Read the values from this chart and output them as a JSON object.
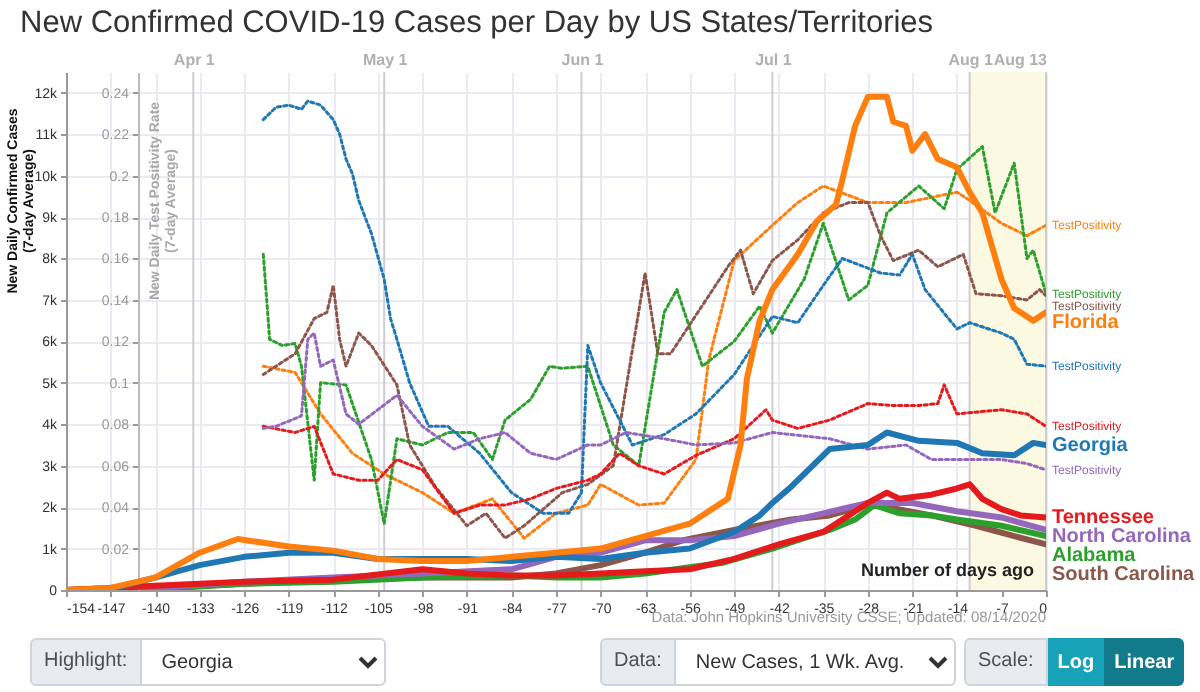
{
  "chart_data": {
    "type": "line",
    "title": "New Confirmed COVID-19 Cases per Day by US States/Territories",
    "xlabel": "Number of days ago",
    "ylabel": "New Daily Confirmed Cases\n(7-day Average)",
    "y2label": "New Daily Test Positivity Rate\n(7-day Average)",
    "annotations": [
      "Data: John Hopkins University CSSE; Updated: 08/14/2020",
      "Highlight:",
      "Georgia",
      "Data:",
      "New Cases, 1 Wk. Avg.",
      "Scale:",
      "Log",
      "Linear"
    ],
    "xlim": [
      -154,
      0
    ],
    "xticks": [
      -154,
      -147,
      -140,
      -133,
      -126,
      -119,
      -112,
      -105,
      -98,
      -91,
      -84,
      -77,
      -70,
      -63,
      -56,
      -49,
      -42,
      -35,
      -28,
      -21,
      -14,
      -7,
      0
    ],
    "x2lim": [
      "--03-12",
      "--08-13"
    ],
    "x2ticks": [
      {
        "value": "--04-01",
        "label": "Apr 1"
      },
      {
        "value": "--05-01",
        "label": "May 1"
      },
      {
        "value": "--06-01",
        "label": "Jun 1"
      },
      {
        "value": "--07-01",
        "label": "Jul 1"
      },
      {
        "value": "--08-01",
        "label": "Aug 1"
      },
      {
        "value": "--08-13",
        "label": "Aug 13"
      }
    ],
    "ylim": [
      0,
      12500
    ],
    "yticks": [
      0,
      {
        "value": 1000,
        "label": "1k"
      },
      {
        "value": 2000,
        "label": "2k"
      },
      {
        "value": 3000,
        "label": "3k"
      },
      {
        "value": 4000,
        "label": "4k"
      },
      {
        "value": 5000,
        "label": "5k"
      },
      {
        "value": 6000,
        "label": "6k"
      },
      {
        "value": 7000,
        "label": "7k"
      },
      {
        "value": 8000,
        "label": "8k"
      },
      {
        "value": 9000,
        "label": "9k"
      },
      {
        "value": 10000,
        "label": "10k"
      },
      {
        "value": 11000,
        "label": "11k"
      },
      {
        "value": 12000,
        "label": "12k"
      }
    ],
    "y2lim": [
      0,
      0.25
    ],
    "y2ticks": [
      0.02,
      0.04,
      0.06,
      0.08,
      0.1,
      0.12,
      0.14,
      0.16,
      0.18,
      0.2,
      0.22,
      0.24
    ],
    "grid": true,
    "bands": [
      {
        "axis": "x",
        "from": -12,
        "to": 0,
        "color": "#fcf9e3"
      }
    ],
    "series": [
      {
        "name": "TestPositivity",
        "color": "#ff7f0e",
        "axis": "y2",
        "line_style": "dotted",
        "x": [
          -123,
          -118,
          -114,
          -109,
          -104,
          -98,
          -93,
          -87,
          -82,
          -77,
          -72,
          -70,
          -67,
          -64,
          -60,
          -55,
          -53,
          -49,
          -43,
          -39,
          -35,
          -28,
          -22,
          -14,
          -12,
          -7,
          -3,
          0
        ],
        "values": [
          0.108,
          0.105,
          0.085,
          0.066,
          0.056,
          0.047,
          0.037,
          0.044,
          0.025,
          0.037,
          0.041,
          0.051,
          0.046,
          0.041,
          0.042,
          0.063,
          0.111,
          0.159,
          0.176,
          0.187,
          0.195,
          0.187,
          0.187,
          0.192,
          0.188,
          0.177,
          0.171,
          0.176
        ]
      },
      {
        "name": "TestPositivity",
        "color": "#2ca02c",
        "axis": "y2",
        "line_style": "dotted",
        "x": [
          -123,
          -122,
          -120,
          -118,
          -117,
          -115,
          -114,
          -110,
          -106,
          -104,
          -102,
          -98,
          -94,
          -90,
          -87,
          -85,
          -81,
          -78,
          -76,
          -72,
          -68,
          -64,
          -60,
          -58,
          -54,
          -49,
          -45,
          -43,
          -38,
          -35,
          -31,
          -28,
          -25,
          -20,
          -16,
          -14,
          -10,
          -8,
          -5,
          -3,
          -2,
          0
        ],
        "values": [
          0.162,
          0.121,
          0.118,
          0.119,
          0.108,
          0.053,
          0.1,
          0.099,
          0.063,
          0.032,
          0.073,
          0.07,
          0.076,
          0.076,
          0.063,
          0.082,
          0.092,
          0.108,
          0.107,
          0.108,
          0.07,
          0.06,
          0.134,
          0.145,
          0.108,
          0.12,
          0.137,
          0.124,
          0.15,
          0.177,
          0.14,
          0.147,
          0.182,
          0.195,
          0.184,
          0.203,
          0.214,
          0.182,
          0.206,
          0.16,
          0.164,
          0.143
        ]
      },
      {
        "name": "TestPositivity",
        "color": "#8c564b",
        "axis": "y2",
        "line_style": "dotted",
        "x": [
          -123,
          -118,
          -115,
          -113,
          -112,
          -111,
          -110,
          -108,
          -106,
          -102,
          -100,
          -96,
          -91,
          -88,
          -85,
          -82,
          -76,
          -72,
          -68,
          -63,
          -61,
          -59,
          -50,
          -48,
          -46,
          -43,
          -39,
          -35,
          -31,
          -28,
          -26,
          -24,
          -20,
          -17,
          -13,
          -11,
          -7,
          -3,
          -1,
          0
        ],
        "values": [
          0.104,
          0.114,
          0.131,
          0.134,
          0.147,
          0.121,
          0.108,
          0.124,
          0.118,
          0.099,
          0.07,
          0.05,
          0.031,
          0.037,
          0.025,
          0.031,
          0.047,
          0.051,
          0.06,
          0.153,
          0.114,
          0.114,
          0.156,
          0.164,
          0.143,
          0.159,
          0.169,
          0.182,
          0.187,
          0.187,
          0.171,
          0.159,
          0.164,
          0.156,
          0.162,
          0.143,
          0.142,
          0.14,
          0.145,
          0.142
        ]
      },
      {
        "name": "TestPositivity",
        "color": "#1f77b4",
        "axis": "y2",
        "line_style": "dotted",
        "x": [
          -123,
          -121,
          -119,
          -117,
          -116,
          -114,
          -112,
          -111,
          -110,
          -109,
          -108,
          -106,
          -104,
          -103,
          -102,
          -100,
          -97,
          -94,
          -89,
          -84,
          -79,
          -75,
          -73,
          -72,
          -70,
          -65,
          -60,
          -55,
          -49,
          -43,
          -39,
          -35,
          -32,
          -26,
          -23,
          -21,
          -19,
          -14,
          -12,
          -7,
          -5,
          -3,
          0
        ],
        "values": [
          0.227,
          0.233,
          0.234,
          0.232,
          0.236,
          0.234,
          0.227,
          0.22,
          0.208,
          0.201,
          0.188,
          0.172,
          0.15,
          0.131,
          0.121,
          0.1,
          0.079,
          0.079,
          0.066,
          0.047,
          0.037,
          0.037,
          0.047,
          0.118,
          0.1,
          0.07,
          0.075,
          0.085,
          0.104,
          0.132,
          0.129,
          0.147,
          0.16,
          0.153,
          0.152,
          0.162,
          0.145,
          0.126,
          0.129,
          0.124,
          0.121,
          0.109,
          0.108
        ]
      },
      {
        "name": "TestPositivity",
        "color": "#e41a1c",
        "axis": "y2",
        "line_style": "dotted",
        "x": [
          -123,
          -118,
          -115,
          -112,
          -108,
          -105,
          -102,
          -98,
          -93,
          -89,
          -85,
          -81,
          -77,
          -72,
          -70,
          -67,
          -64,
          -60,
          -55,
          -49,
          -44,
          -43,
          -39,
          -34,
          -28,
          -24,
          -20,
          -17,
          -16,
          -14,
          -7,
          -3,
          0
        ],
        "values": [
          0.079,
          0.076,
          0.079,
          0.056,
          0.053,
          0.053,
          0.063,
          0.058,
          0.037,
          0.041,
          0.041,
          0.044,
          0.049,
          0.053,
          0.056,
          0.066,
          0.06,
          0.056,
          0.065,
          0.073,
          0.087,
          0.082,
          0.078,
          0.082,
          0.09,
          0.089,
          0.089,
          0.09,
          0.099,
          0.085,
          0.087,
          0.085,
          0.079
        ]
      },
      {
        "name": "TestPositivity",
        "color": "#9467bd",
        "axis": "y2",
        "line_style": "dotted",
        "x": [
          -123,
          -121,
          -117,
          -116,
          -115,
          -114,
          -112,
          -110,
          -108,
          -102,
          -98,
          -93,
          -89,
          -85,
          -81,
          -77,
          -72,
          -70,
          -66,
          -60,
          -55,
          -49,
          -43,
          -34,
          -28,
          -22,
          -18,
          -14,
          -7,
          -3,
          0
        ],
        "values": [
          0.078,
          0.079,
          0.084,
          0.121,
          0.124,
          0.108,
          0.111,
          0.085,
          0.08,
          0.094,
          0.079,
          0.068,
          0.073,
          0.076,
          0.066,
          0.063,
          0.07,
          0.07,
          0.076,
          0.073,
          0.07,
          0.071,
          0.076,
          0.073,
          0.068,
          0.07,
          0.063,
          0.063,
          0.063,
          0.061,
          0.058
        ]
      },
      {
        "name": "South Carolina",
        "color": "#8c564b",
        "line_style": "solid",
        "x": [
          -154,
          -140,
          -126,
          -112,
          -98,
          -84,
          -77,
          -70,
          -63,
          -57,
          -49,
          -40,
          -34,
          -28,
          -25,
          -18,
          -11,
          -5,
          0
        ],
        "values": [
          0,
          50,
          150,
          250,
          300,
          300,
          400,
          600,
          900,
          1200,
          1450,
          1700,
          1800,
          2050,
          2000,
          1800,
          1550,
          1300,
          1100
        ]
      },
      {
        "name": "Alabama",
        "color": "#2ca02c",
        "line_style": "solid",
        "x": [
          -154,
          -140,
          -126,
          -112,
          -98,
          -84,
          -77,
          -70,
          -63,
          -56,
          -51,
          -43,
          -39,
          -34,
          -30,
          -27,
          -23,
          -18,
          -14,
          -7,
          0
        ],
        "values": [
          0,
          20,
          150,
          200,
          300,
          350,
          300,
          300,
          400,
          550,
          650,
          1000,
          1200,
          1450,
          1700,
          2050,
          1850,
          1800,
          1700,
          1550,
          1300
        ]
      },
      {
        "name": "North Carolina",
        "color": "#9467bd",
        "line_style": "solid",
        "x": [
          -154,
          -140,
          -126,
          -112,
          -98,
          -84,
          -77,
          -70,
          -63,
          -56,
          -49,
          -42,
          -35,
          -28,
          -21,
          -14,
          -7,
          0
        ],
        "values": [
          0,
          50,
          200,
          300,
          400,
          500,
          800,
          900,
          1200,
          1200,
          1300,
          1600,
          1850,
          2100,
          2100,
          1900,
          1750,
          1450
        ]
      },
      {
        "name": "Tennessee",
        "color": "#e41a1c",
        "line_style": "solid",
        "x": [
          -154,
          -140,
          -126,
          -112,
          -98,
          -91,
          -84,
          -77,
          -70,
          -63,
          -56,
          -49,
          -42,
          -35,
          -28,
          -25,
          -23,
          -18,
          -14,
          -12,
          -10,
          -7,
          -4,
          0
        ],
        "values": [
          0,
          100,
          200,
          250,
          500,
          400,
          350,
          350,
          400,
          450,
          500,
          750,
          1100,
          1400,
          2100,
          2350,
          2200,
          2300,
          2450,
          2550,
          2200,
          1950,
          1800,
          1750
        ]
      },
      {
        "name": "Georgia",
        "color": "#1f77b4",
        "line_style": "solid",
        "x": [
          -154,
          -147,
          -140,
          -133,
          -126,
          -119,
          -112,
          -105,
          -98,
          -91,
          -84,
          -77,
          -70,
          -63,
          -56,
          -49,
          -45,
          -43,
          -40,
          -34,
          -28,
          -25,
          -20,
          -14,
          -10,
          -5,
          -2,
          0
        ],
        "values": [
          0,
          20,
          300,
          600,
          800,
          900,
          900,
          750,
          750,
          750,
          700,
          800,
          750,
          900,
          1000,
          1400,
          1800,
          2100,
          2500,
          3400,
          3500,
          3800,
          3600,
          3550,
          3300,
          3250,
          3550,
          3500
        ]
      },
      {
        "name": "Florida",
        "color": "#ff7f0e",
        "line_style": "solid",
        "x": [
          -154,
          -147,
          -140,
          -133,
          -127,
          -119,
          -112,
          -105,
          -98,
          -91,
          -84,
          -77,
          -70,
          -63,
          -56,
          -50,
          -48,
          -47,
          -45,
          -43,
          -39,
          -36,
          -33,
          -32,
          -30,
          -28,
          -25,
          -24,
          -22,
          -21,
          -19,
          -17,
          -14,
          -12,
          -10,
          -7,
          -5,
          -2,
          0
        ],
        "values": [
          0,
          50,
          300,
          900,
          1230,
          1050,
          950,
          750,
          700,
          700,
          800,
          900,
          1000,
          1300,
          1600,
          2200,
          3500,
          5100,
          6500,
          7250,
          8100,
          8900,
          9300,
          9900,
          11200,
          11900,
          11900,
          11300,
          11200,
          10600,
          11000,
          10400,
          10200,
          9600,
          9100,
          7500,
          6800,
          6500,
          6700
        ]
      }
    ]
  }
}
